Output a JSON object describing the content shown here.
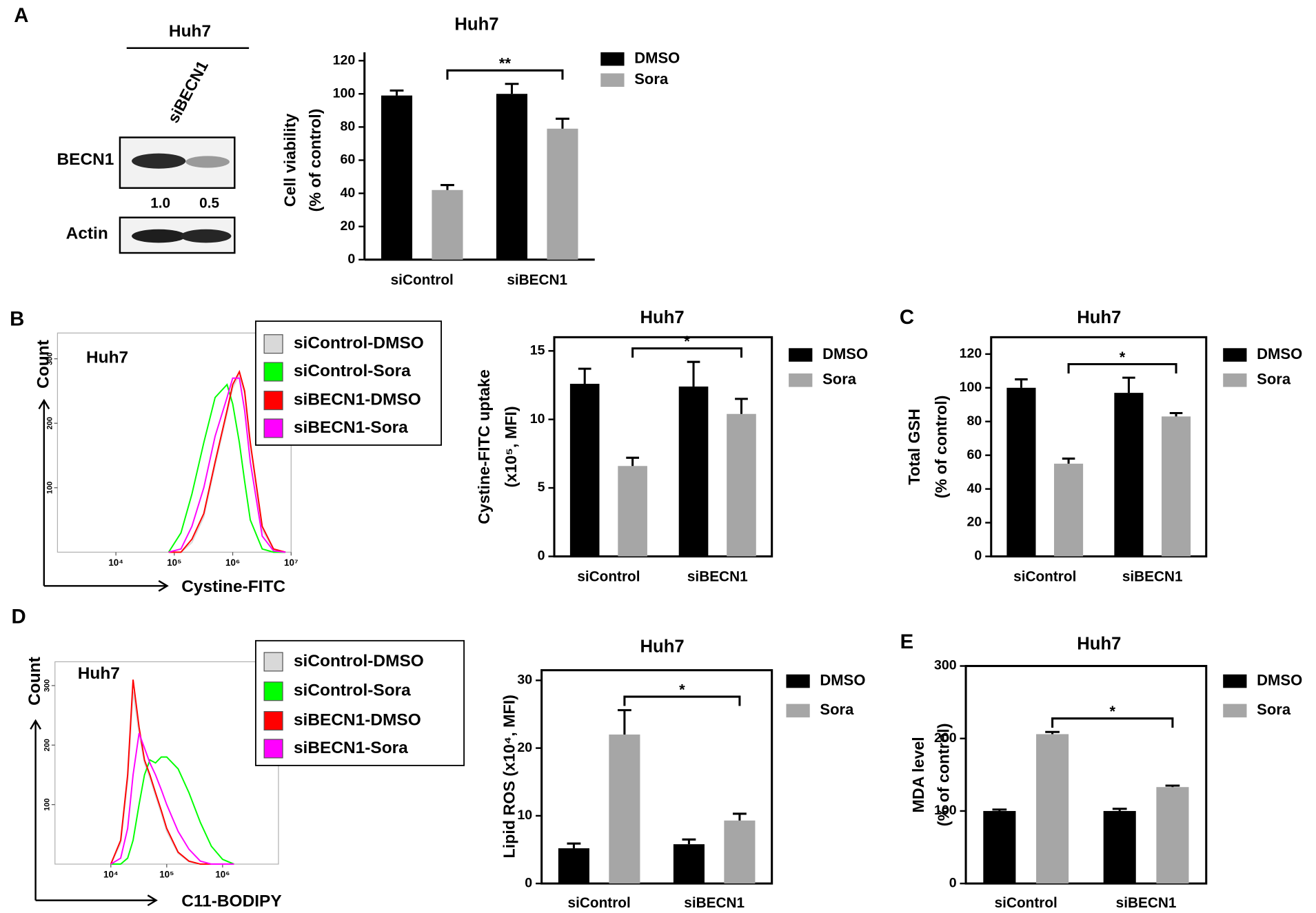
{
  "panel_labels": [
    "A",
    "B",
    "C",
    "D",
    "E"
  ],
  "blot": {
    "header": "Huh7",
    "lane_label": "siBECN1",
    "rows": [
      "BECN1",
      "Actin"
    ],
    "quantification": [
      "1.0",
      "0.5"
    ]
  },
  "chart_data": [
    {
      "type": "bar",
      "title": "Huh7",
      "ylabel": [
        "Cell viability",
        "(% of control)"
      ],
      "frame": false,
      "categories": [
        "siControl",
        "siBECN1"
      ],
      "series": [
        {
          "name": "DMSO",
          "color": "#000000",
          "values": [
            99,
            100
          ],
          "errors": [
            3,
            6
          ]
        },
        {
          "name": "Sora",
          "color": "#a6a6a6",
          "values": [
            42,
            79
          ],
          "errors": [
            3,
            6
          ]
        }
      ],
      "ylim": [
        0,
        120
      ],
      "yticks": [
        0,
        20,
        40,
        60,
        80,
        100,
        120
      ],
      "annotation": "**"
    },
    {
      "type": "line",
      "title": "Huh7",
      "xlabel": "Cystine-FITC",
      "ylabel": "Count",
      "log_x": true,
      "x": [
        80000,
        130000,
        200000,
        320000,
        500000,
        800000,
        1000000,
        1300000,
        1600000,
        2000000,
        3200000,
        5000000,
        8000000
      ],
      "series": [
        {
          "name": "siControl-DMSO",
          "color": "#d9d9d9",
          "values": [
            0,
            0,
            15,
            55,
            135,
            215,
            255,
            275,
            245,
            165,
            35,
            4,
            0
          ]
        },
        {
          "name": "siControl-Sora",
          "color": "#00ff00",
          "values": [
            0,
            30,
            90,
            170,
            240,
            260,
            230,
            170,
            110,
            50,
            5,
            0,
            0
          ]
        },
        {
          "name": "siBECN1-DMSO",
          "color": "#ff0000",
          "values": [
            0,
            0,
            20,
            60,
            140,
            220,
            260,
            280,
            250,
            170,
            40,
            5,
            0
          ]
        },
        {
          "name": "siBECN1-Sora",
          "color": "#ff00ff",
          "values": [
            0,
            5,
            40,
            100,
            180,
            240,
            270,
            270,
            220,
            140,
            25,
            2,
            0
          ]
        }
      ],
      "xlim": [
        1000,
        10000000
      ],
      "xticks": [
        {
          "value": 10000,
          "label": "10⁴"
        },
        {
          "value": 100000,
          "label": "10⁵"
        },
        {
          "value": 1000000,
          "label": "10⁶"
        },
        {
          "value": 10000000,
          "label": "10⁷"
        }
      ],
      "ylim": [
        0,
        340
      ],
      "yticks": [
        100,
        200,
        300
      ]
    },
    {
      "type": "bar",
      "title": "Huh7",
      "ylabel": [
        "Cystine-FITC uptake",
        "(x10⁵, MFI)"
      ],
      "frame": true,
      "categories": [
        "siControl",
        "siBECN1"
      ],
      "series": [
        {
          "name": "DMSO",
          "color": "#000000",
          "values": [
            12.6,
            12.4
          ],
          "errors": [
            1.1,
            1.8
          ]
        },
        {
          "name": "Sora",
          "color": "#a6a6a6",
          "values": [
            6.6,
            10.4
          ],
          "errors": [
            0.6,
            1.1
          ]
        }
      ],
      "ylim": [
        0,
        16
      ],
      "yticks": [
        0,
        5,
        10,
        15
      ],
      "annotation": "*"
    },
    {
      "type": "bar",
      "title": "Huh7",
      "ylabel": [
        "Total GSH",
        "(% of control)"
      ],
      "frame": true,
      "categories": [
        "siControl",
        "siBECN1"
      ],
      "series": [
        {
          "name": "DMSO",
          "color": "#000000",
          "values": [
            100,
            97
          ],
          "errors": [
            5,
            9
          ]
        },
        {
          "name": "Sora",
          "color": "#a6a6a6",
          "values": [
            55,
            83
          ],
          "errors": [
            3,
            2
          ]
        }
      ],
      "ylim": [
        0,
        130
      ],
      "yticks": [
        0,
        20,
        40,
        60,
        80,
        100,
        120
      ],
      "annotation": "*"
    },
    {
      "type": "line",
      "title": "Huh7",
      "xlabel": "C11-BODIPY",
      "ylabel": "Count",
      "log_x": true,
      "x": [
        10000,
        15000,
        20000,
        25000,
        32000,
        40000,
        50000,
        63000,
        80000,
        100000,
        160000,
        250000,
        400000,
        630000,
        1000000,
        1600000
      ],
      "series": [
        {
          "name": "siControl-DMSO",
          "color": "#d9d9d9",
          "values": [
            0,
            35,
            140,
            290,
            220,
            170,
            145,
            115,
            85,
            55,
            18,
            4,
            0,
            0,
            0,
            0
          ]
        },
        {
          "name": "siControl-Sora",
          "color": "#00ff00",
          "values": [
            0,
            0,
            10,
            40,
            100,
            150,
            175,
            170,
            180,
            180,
            160,
            120,
            70,
            30,
            8,
            0
          ]
        },
        {
          "name": "siBECN1-DMSO",
          "color": "#ff0000",
          "values": [
            0,
            40,
            150,
            310,
            230,
            175,
            150,
            120,
            90,
            60,
            20,
            5,
            0,
            0,
            0,
            0
          ]
        },
        {
          "name": "siBECN1-Sora",
          "color": "#ff00ff",
          "values": [
            0,
            10,
            60,
            150,
            220,
            195,
            170,
            150,
            125,
            100,
            55,
            25,
            5,
            0,
            0,
            0
          ]
        }
      ],
      "xlim": [
        1000,
        10000000
      ],
      "xticks": [
        {
          "value": 10000,
          "label": "10⁴"
        },
        {
          "value": 100000,
          "label": "10⁵"
        },
        {
          "value": 1000000,
          "label": "10⁶"
        }
      ],
      "ylim": [
        0,
        340
      ],
      "yticks": [
        100,
        200,
        300
      ]
    },
    {
      "type": "bar",
      "title": "Huh7",
      "ylabel": [
        "Lipid ROS (x10⁴, MFI)"
      ],
      "frame": true,
      "categories": [
        "siControl",
        "siBECN1"
      ],
      "series": [
        {
          "name": "DMSO",
          "color": "#000000",
          "values": [
            5.2,
            5.8
          ],
          "errors": [
            0.7,
            0.7
          ]
        },
        {
          "name": "Sora",
          "color": "#a6a6a6",
          "values": [
            22,
            9.3
          ],
          "errors": [
            3.6,
            1
          ]
        }
      ],
      "ylim": [
        0,
        31.5
      ],
      "yticks": [
        0,
        10,
        20,
        30
      ],
      "annotation": "*"
    },
    {
      "type": "bar",
      "title": "Huh7",
      "ylabel": [
        "MDA level",
        "(% of control)"
      ],
      "frame": true,
      "categories": [
        "siControl",
        "siBECN1"
      ],
      "series": [
        {
          "name": "DMSO",
          "color": "#000000",
          "values": [
            100,
            100
          ],
          "errors": [
            2,
            3
          ]
        },
        {
          "name": "Sora",
          "color": "#a6a6a6",
          "values": [
            206,
            133
          ],
          "errors": [
            3,
            2
          ]
        }
      ],
      "ylim": [
        0,
        300
      ],
      "yticks": [
        0,
        100,
        200,
        300
      ],
      "annotation": "*"
    }
  ]
}
